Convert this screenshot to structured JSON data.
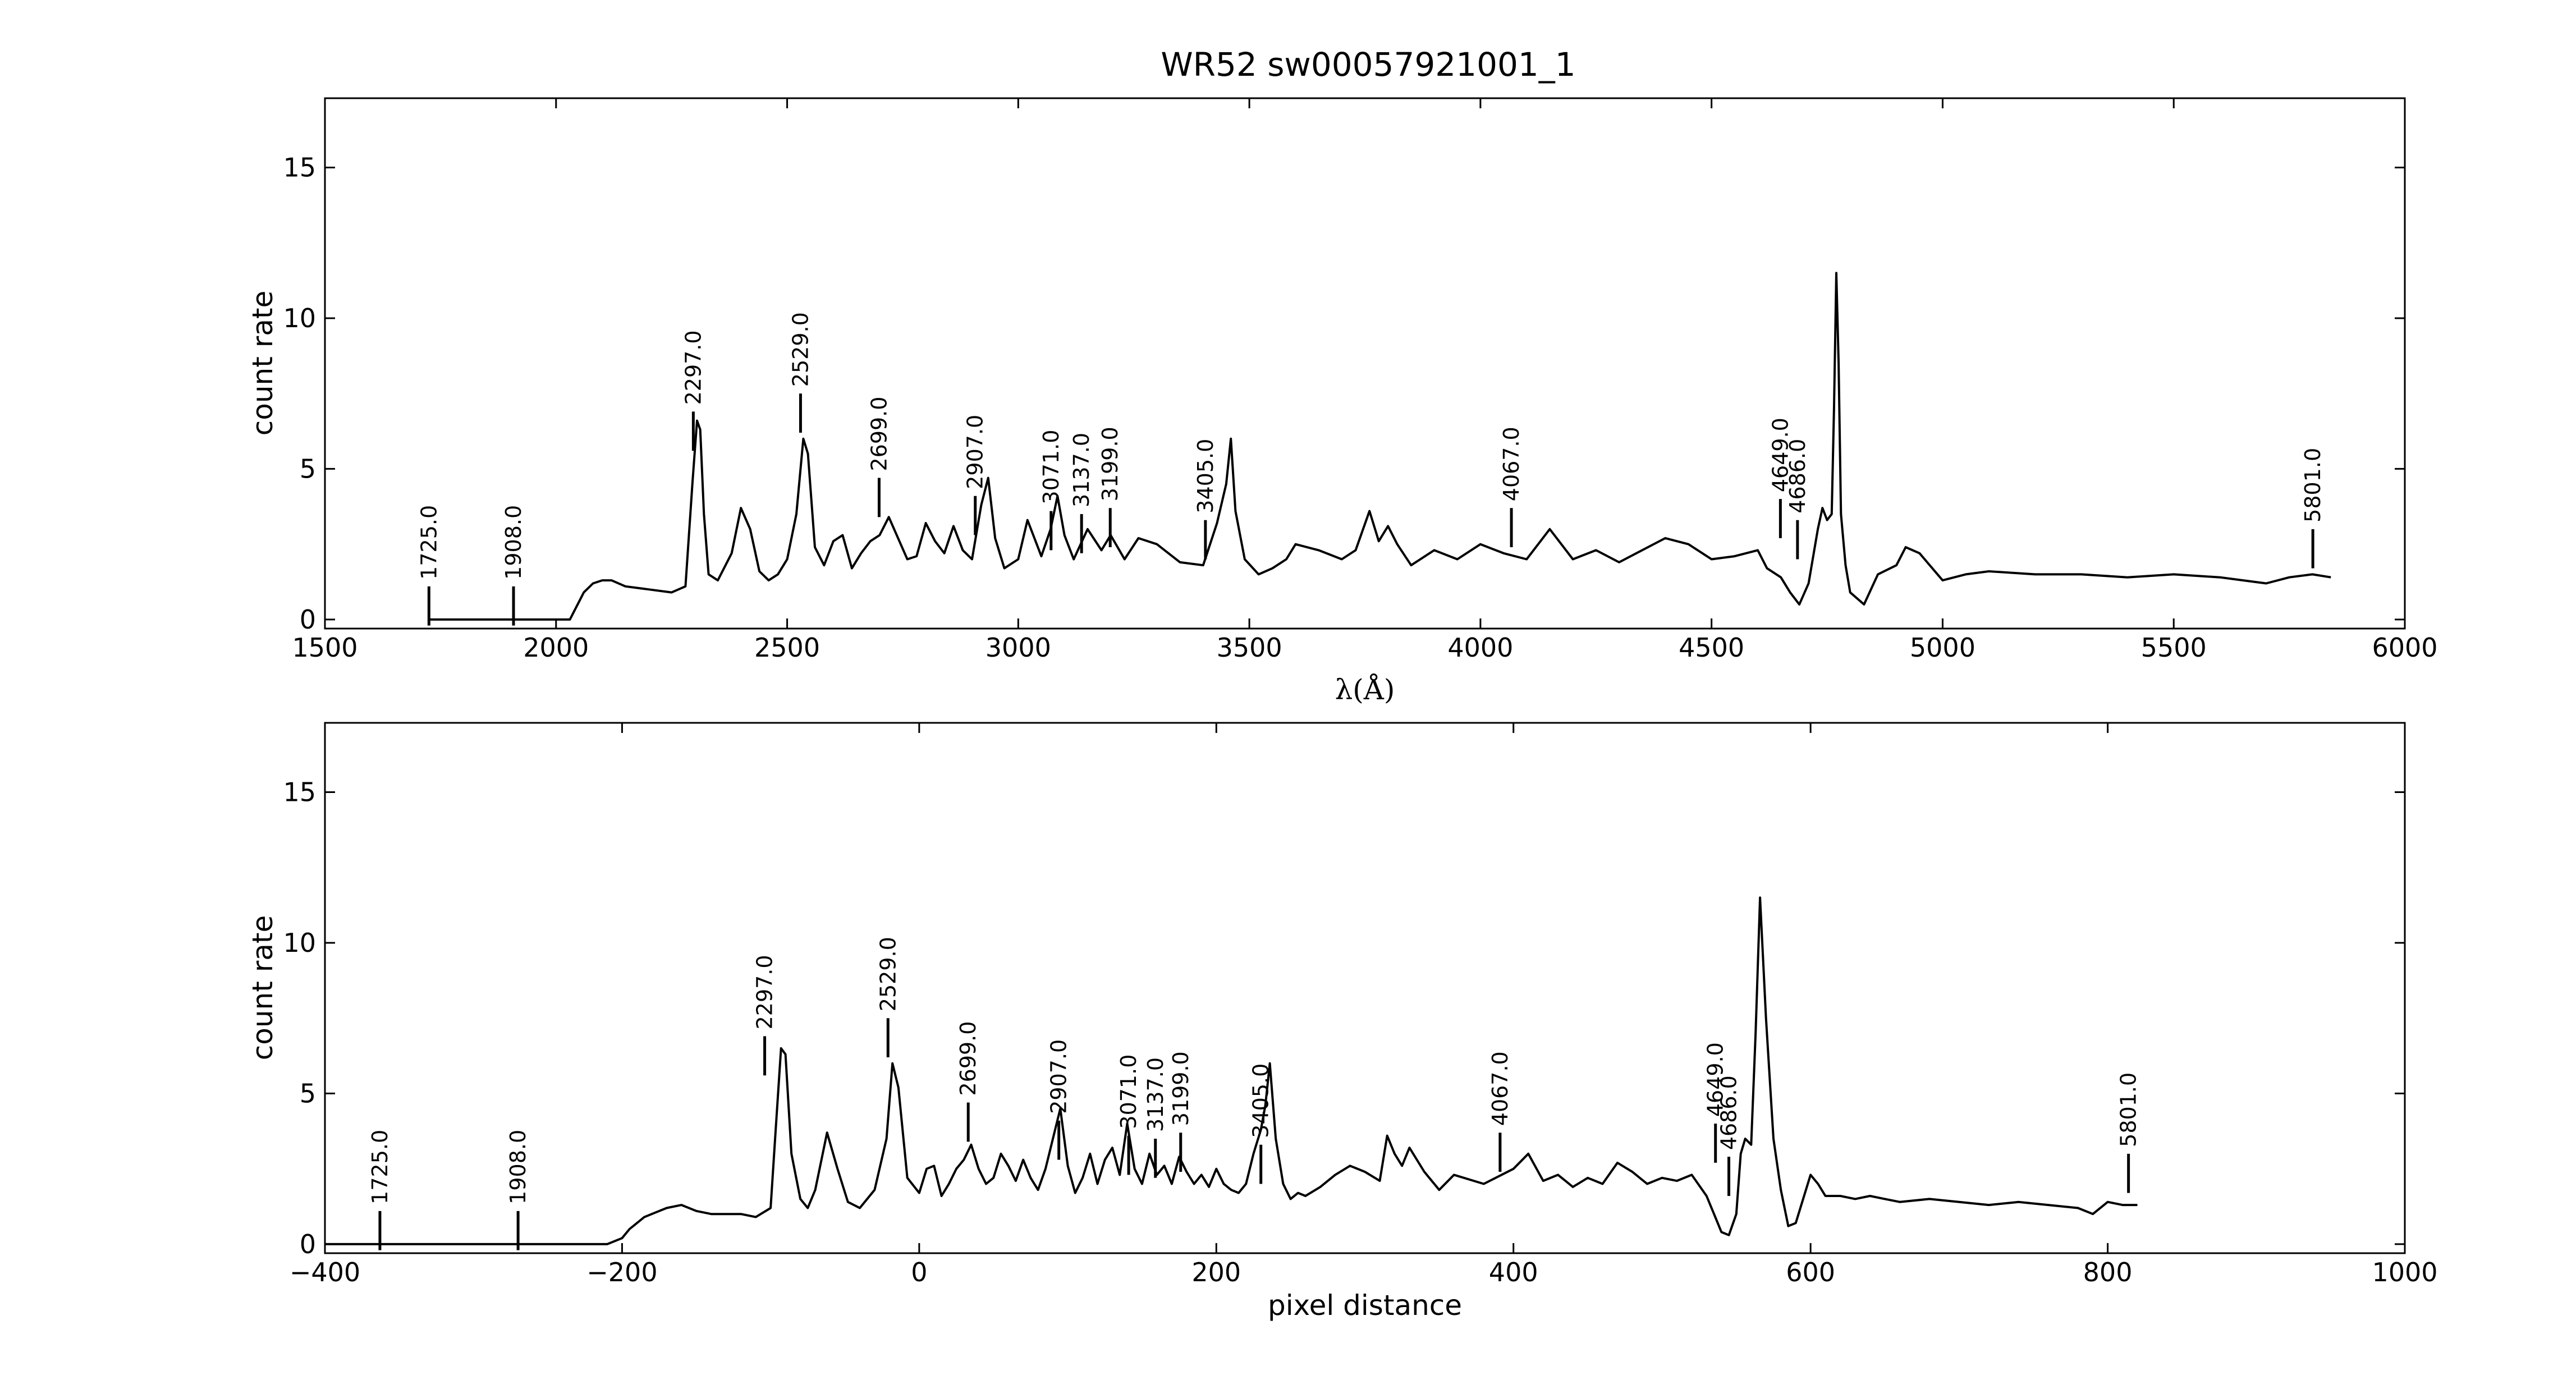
{
  "chart_data": [
    {
      "type": "line",
      "title": "WR52  sw00057921001_1",
      "xlabel": "λ(Å)",
      "ylabel": "count rate",
      "xlim": [
        1500,
        6000
      ],
      "ylim": [
        -0.3,
        17.3
      ],
      "xticks": [
        1500,
        2000,
        2500,
        3000,
        3500,
        4000,
        4500,
        5000,
        5500,
        6000
      ],
      "yticks": [
        0,
        5,
        10,
        15
      ],
      "grid": false,
      "series": [
        {
          "x": [
            1725,
            1900,
            2000,
            2030,
            2040,
            2050,
            2060,
            2080,
            2100,
            2120,
            2150,
            2200,
            2250,
            2280,
            2295,
            2305,
            2312,
            2320,
            2330,
            2350,
            2380,
            2400,
            2420,
            2440,
            2460,
            2480,
            2500,
            2520,
            2535,
            2545,
            2560,
            2580,
            2600,
            2620,
            2640,
            2660,
            2680,
            2700,
            2720,
            2740,
            2760,
            2780,
            2800,
            2820,
            2840,
            2860,
            2880,
            2900,
            2920,
            2935,
            2950,
            2970,
            3000,
            3020,
            3050,
            3070,
            3085,
            3100,
            3120,
            3150,
            3180,
            3200,
            3230,
            3260,
            3300,
            3350,
            3400,
            3430,
            3450,
            3460,
            3470,
            3490,
            3520,
            3550,
            3580,
            3600,
            3650,
            3700,
            3730,
            3760,
            3780,
            3800,
            3820,
            3850,
            3900,
            3950,
            4000,
            4050,
            4100,
            4150,
            4200,
            4250,
            4300,
            4350,
            4400,
            4450,
            4500,
            4550,
            4600,
            4620,
            4650,
            4670,
            4690,
            4710,
            4730,
            4740,
            4750,
            4760,
            4765,
            4770,
            4775,
            4780,
            4790,
            4800,
            4830,
            4860,
            4900,
            4920,
            4950,
            5000,
            5050,
            5100,
            5200,
            5300,
            5400,
            5500,
            5600,
            5650,
            5700,
            5750,
            5800,
            5840
          ],
          "y": [
            0,
            0,
            0,
            0,
            0.3,
            0.6,
            0.9,
            1.2,
            1.3,
            1.3,
            1.1,
            1.0,
            0.9,
            1.1,
            4.5,
            6.6,
            6.3,
            3.5,
            1.5,
            1.3,
            2.2,
            3.7,
            3.0,
            1.6,
            1.3,
            1.5,
            2.0,
            3.5,
            6.0,
            5.5,
            2.4,
            1.8,
            2.6,
            2.8,
            1.7,
            2.2,
            2.6,
            2.8,
            3.4,
            2.7,
            2.0,
            2.1,
            3.2,
            2.6,
            2.2,
            3.1,
            2.3,
            2.0,
            3.8,
            4.7,
            2.7,
            1.7,
            2.0,
            3.3,
            2.1,
            3.0,
            4.1,
            2.8,
            2.0,
            3.0,
            2.3,
            2.8,
            2.0,
            2.7,
            2.5,
            1.9,
            1.8,
            3.2,
            4.5,
            6.0,
            3.6,
            2.0,
            1.5,
            1.7,
            2.0,
            2.5,
            2.3,
            2.0,
            2.3,
            3.6,
            2.6,
            3.1,
            2.5,
            1.8,
            2.3,
            2.0,
            2.5,
            2.2,
            2.0,
            3.0,
            2.0,
            2.3,
            1.9,
            2.3,
            2.7,
            2.5,
            2.0,
            2.1,
            2.3,
            1.7,
            1.4,
            0.9,
            0.5,
            1.2,
            3.0,
            3.7,
            3.3,
            3.5,
            7.0,
            11.5,
            8.5,
            3.5,
            1.8,
            0.9,
            0.5,
            1.5,
            1.8,
            2.4,
            2.2,
            1.3,
            1.5,
            1.6,
            1.5,
            1.5,
            1.4,
            1.5,
            1.4,
            1.3,
            1.2,
            1.4,
            1.5,
            1.4
          ]
        }
      ],
      "line_marks": [
        {
          "label": "1725.0",
          "x": 1725,
          "y_bottom": -0.2,
          "y_top": 1.1
        },
        {
          "label": "1908.0",
          "x": 1908,
          "y_bottom": -0.2,
          "y_top": 1.1
        },
        {
          "label": "2297.0",
          "x": 2297,
          "y_bottom": 5.6,
          "y_top": 6.9
        },
        {
          "label": "2529.0",
          "x": 2529,
          "y_bottom": 6.2,
          "y_top": 7.5
        },
        {
          "label": "2699.0",
          "x": 2699,
          "y_bottom": 3.4,
          "y_top": 4.7
        },
        {
          "label": "2907.0",
          "x": 2907,
          "y_bottom": 2.8,
          "y_top": 4.1
        },
        {
          "label": "3071.0",
          "x": 3071,
          "y_bottom": 2.3,
          "y_top": 3.6
        },
        {
          "label": "3137.0",
          "x": 3137,
          "y_bottom": 2.2,
          "y_top": 3.5
        },
        {
          "label": "3199.0",
          "x": 3199,
          "y_bottom": 2.4,
          "y_top": 3.7
        },
        {
          "label": "3405.0",
          "x": 3405,
          "y_bottom": 2.0,
          "y_top": 3.3
        },
        {
          "label": "4067.0",
          "x": 4067,
          "y_bottom": 2.4,
          "y_top": 3.7
        },
        {
          "label": "4649.0",
          "x": 4649,
          "y_bottom": 2.7,
          "y_top": 4.0
        },
        {
          "label": "4686.0",
          "x": 4686,
          "y_bottom": 2.0,
          "y_top": 3.3
        },
        {
          "label": "5801.0",
          "x": 5801,
          "y_bottom": 1.7,
          "y_top": 3.0
        }
      ]
    },
    {
      "type": "line",
      "title": "",
      "xlabel": "pixel distance",
      "ylabel": "count rate",
      "xlim": [
        -400,
        1000
      ],
      "ylim": [
        -0.3,
        17.3
      ],
      "xticks": [
        -400,
        -200,
        0,
        200,
        400,
        600,
        800,
        1000
      ],
      "yticks": [
        0,
        5,
        10,
        15
      ],
      "grid": false,
      "series": [
        {
          "x": [
            -400,
            -210,
            -200,
            -195,
            -190,
            -185,
            -180,
            -170,
            -160,
            -150,
            -140,
            -130,
            -120,
            -110,
            -100,
            -97,
            -93,
            -90,
            -86,
            -80,
            -75,
            -70,
            -62,
            -55,
            -48,
            -40,
            -30,
            -22,
            -18,
            -14,
            -8,
            0,
            5,
            10,
            15,
            20,
            25,
            30,
            35,
            40,
            45,
            50,
            55,
            60,
            65,
            70,
            75,
            80,
            85,
            90,
            95,
            100,
            105,
            110,
            115,
            120,
            125,
            130,
            135,
            140,
            145,
            150,
            155,
            160,
            165,
            170,
            175,
            180,
            185,
            190,
            195,
            200,
            205,
            210,
            215,
            220,
            225,
            230,
            233,
            236,
            240,
            245,
            250,
            255,
            260,
            270,
            280,
            290,
            300,
            310,
            315,
            320,
            325,
            330,
            340,
            350,
            360,
            380,
            400,
            410,
            420,
            430,
            440,
            450,
            460,
            470,
            480,
            490,
            500,
            510,
            520,
            530,
            535,
            540,
            545,
            550,
            553,
            556,
            560,
            563,
            566,
            570,
            575,
            580,
            585,
            590,
            595,
            600,
            605,
            610,
            620,
            630,
            640,
            650,
            660,
            680,
            700,
            720,
            740,
            760,
            780,
            790,
            800,
            810,
            820
          ],
          "y": [
            0,
            0,
            0.2,
            0.5,
            0.7,
            0.9,
            1.0,
            1.2,
            1.3,
            1.1,
            1.0,
            1.0,
            1.0,
            0.9,
            1.2,
            3.5,
            6.5,
            6.3,
            3.0,
            1.5,
            1.2,
            1.8,
            3.7,
            2.5,
            1.4,
            1.2,
            1.8,
            3.5,
            6.0,
            5.2,
            2.2,
            1.7,
            2.5,
            2.6,
            1.6,
            2.0,
            2.5,
            2.8,
            3.3,
            2.5,
            2.0,
            2.2,
            3.0,
            2.6,
            2.1,
            2.8,
            2.2,
            1.8,
            2.5,
            3.5,
            4.5,
            2.6,
            1.7,
            2.2,
            3.0,
            2.0,
            2.8,
            3.2,
            2.3,
            4.0,
            2.5,
            2.0,
            3.0,
            2.3,
            2.6,
            2.0,
            2.9,
            2.4,
            2.0,
            2.3,
            1.9,
            2.5,
            2.0,
            1.8,
            1.7,
            2.0,
            3.0,
            3.8,
            4.6,
            6.0,
            3.5,
            2.0,
            1.5,
            1.7,
            1.6,
            1.9,
            2.3,
            2.6,
            2.4,
            2.1,
            3.6,
            3.0,
            2.6,
            3.2,
            2.4,
            1.8,
            2.3,
            2.0,
            2.5,
            3.0,
            2.1,
            2.3,
            1.9,
            2.2,
            2.0,
            2.7,
            2.4,
            2.0,
            2.2,
            2.1,
            2.3,
            1.6,
            1.0,
            0.4,
            0.3,
            1.0,
            3.0,
            3.5,
            3.3,
            7.0,
            11.5,
            7.5,
            3.5,
            1.8,
            0.6,
            0.7,
            1.5,
            2.3,
            2.0,
            1.6,
            1.6,
            1.5,
            1.6,
            1.5,
            1.4,
            1.5,
            1.4,
            1.3,
            1.4,
            1.3,
            1.2,
            1.0,
            1.4,
            1.3,
            1.3
          ]
        }
      ],
      "line_marks": [
        {
          "label": "1725.0",
          "x": -363,
          "y_bottom": -0.2,
          "y_top": 1.1
        },
        {
          "label": "1908.0",
          "x": -270,
          "y_bottom": -0.2,
          "y_top": 1.1
        },
        {
          "label": "2297.0",
          "x": -104,
          "y_bottom": 5.6,
          "y_top": 6.9
        },
        {
          "label": "2529.0",
          "x": -21,
          "y_bottom": 6.2,
          "y_top": 7.5
        },
        {
          "label": "2699.0",
          "x": 33,
          "y_bottom": 3.4,
          "y_top": 4.7
        },
        {
          "label": "2907.0",
          "x": 94,
          "y_bottom": 2.8,
          "y_top": 4.1
        },
        {
          "label": "3071.0",
          "x": 141,
          "y_bottom": 2.3,
          "y_top": 3.6
        },
        {
          "label": "3137.0",
          "x": 159,
          "y_bottom": 2.2,
          "y_top": 3.5
        },
        {
          "label": "3199.0",
          "x": 176,
          "y_bottom": 2.4,
          "y_top": 3.7
        },
        {
          "label": "3405.0",
          "x": 230,
          "y_bottom": 2.0,
          "y_top": 3.3
        },
        {
          "label": "4067.0",
          "x": 391,
          "y_bottom": 2.4,
          "y_top": 3.7
        },
        {
          "label": "4649.0",
          "x": 536,
          "y_bottom": 2.7,
          "y_top": 4.0
        },
        {
          "label": "4686.0",
          "x": 545,
          "y_bottom": 1.6,
          "y_top": 2.9
        },
        {
          "label": "5801.0",
          "x": 814,
          "y_bottom": 1.7,
          "y_top": 3.0
        }
      ]
    }
  ]
}
